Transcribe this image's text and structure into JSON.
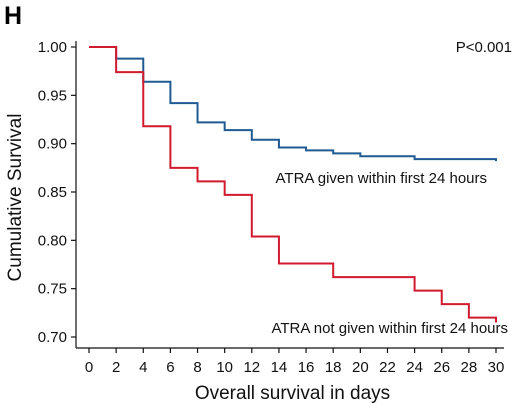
{
  "chart_data": {
    "type": "line",
    "panel_label": "H",
    "xlabel": "Overall survival in days",
    "ylabel": "Cumulative Survival",
    "xlim": [
      0,
      30
    ],
    "ylim": [
      0.7,
      1.0
    ],
    "xticks": [
      0,
      2,
      4,
      6,
      8,
      10,
      12,
      14,
      16,
      18,
      20,
      22,
      24,
      26,
      28,
      30
    ],
    "yticks": [
      "0.70",
      "0.75",
      "0.80",
      "0.85",
      "0.90",
      "0.95",
      "1.00"
    ],
    "annotation": "P<0.001",
    "grid": false,
    "series": [
      {
        "name": "ATRA given within first 24 hours",
        "color": "#1f5a92",
        "step_points": [
          [
            0,
            1.0
          ],
          [
            2,
            0.988
          ],
          [
            4,
            0.964
          ],
          [
            6,
            0.942
          ],
          [
            8,
            0.922
          ],
          [
            10,
            0.914
          ],
          [
            12,
            0.904
          ],
          [
            14,
            0.896
          ],
          [
            16,
            0.893
          ],
          [
            18,
            0.89
          ],
          [
            20,
            0.887
          ],
          [
            24,
            0.884
          ],
          [
            30,
            0.882
          ]
        ]
      },
      {
        "name": "ATRA not given within first 24 hours",
        "color": "#d11a2e",
        "step_points": [
          [
            0,
            1.0
          ],
          [
            2,
            0.974
          ],
          [
            4,
            0.918
          ],
          [
            6,
            0.875
          ],
          [
            8,
            0.861
          ],
          [
            10,
            0.847
          ],
          [
            12,
            0.804
          ],
          [
            14,
            0.776
          ],
          [
            18,
            0.762
          ],
          [
            24,
            0.748
          ],
          [
            26,
            0.734
          ],
          [
            28,
            0.72
          ],
          [
            30,
            0.715
          ]
        ]
      }
    ]
  }
}
